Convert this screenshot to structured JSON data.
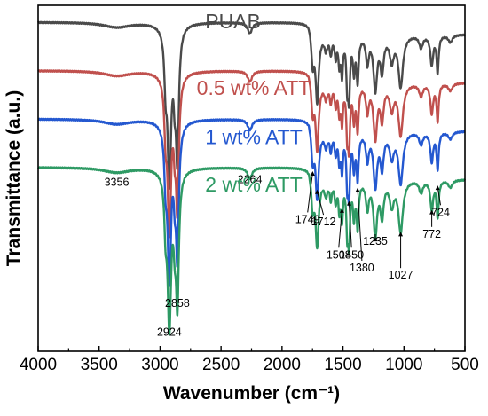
{
  "chart_data": {
    "type": "line",
    "xlabel": "Wavenumber (cm⁻¹)",
    "ylabel": "Transmittance (a.u.)",
    "xlim": [
      4000,
      500
    ],
    "x_reversed": true,
    "x_ticks": [
      4000,
      3500,
      3000,
      2500,
      2000,
      1500,
      1000,
      500
    ],
    "y_ticks": [],
    "grid": false,
    "legend": "inline labels next to each curve",
    "series": [
      {
        "name": "PUAB",
        "color": "#4a4a4a",
        "baseline": 3.6,
        "label_x": 2630,
        "label_y": 3.47
      },
      {
        "name": "0.5 wt% ATT",
        "color": "#c0504d",
        "baseline": 2.6,
        "label_x": 2700,
        "label_y": 2.1
      },
      {
        "name": "1 wt% ATT",
        "color": "#2458d0",
        "baseline": 1.6,
        "label_x": 2630,
        "label_y": 1.08
      },
      {
        "name": "2 wt% ATT",
        "color": "#2e9a64",
        "baseline": 0.6,
        "label_x": 2630,
        "label_y": 0.1
      }
    ],
    "bands": [
      {
        "x": 3356,
        "w": 130,
        "d": 0.1
      },
      {
        "x": 2955,
        "w": 12,
        "d": 0.9
      },
      {
        "x": 2924,
        "w": 18,
        "d": 3.15
      },
      {
        "x": 2880,
        "w": 12,
        "d": 0.9
      },
      {
        "x": 2858,
        "w": 14,
        "d": 2.6
      },
      {
        "x": 2264,
        "w": 22,
        "d": 0.22
      },
      {
        "x": 1749,
        "w": 12,
        "d": 0.6
      },
      {
        "x": 1712,
        "w": 15,
        "d": 1.35
      },
      {
        "x": 1640,
        "w": 14,
        "d": 0.28
      },
      {
        "x": 1600,
        "w": 10,
        "d": 0.35
      },
      {
        "x": 1560,
        "w": 10,
        "d": 0.42
      },
      {
        "x": 1530,
        "w": 9,
        "d": 0.55
      },
      {
        "x": 1508,
        "w": 9,
        "d": 0.75
      },
      {
        "x": 1465,
        "w": 9,
        "d": 0.95
      },
      {
        "x": 1450,
        "w": 9,
        "d": 1.15
      },
      {
        "x": 1410,
        "w": 10,
        "d": 0.7
      },
      {
        "x": 1380,
        "w": 10,
        "d": 0.92
      },
      {
        "x": 1300,
        "w": 14,
        "d": 0.55
      },
      {
        "x": 1235,
        "w": 18,
        "d": 1.1
      },
      {
        "x": 1180,
        "w": 16,
        "d": 0.7
      },
      {
        "x": 1100,
        "w": 20,
        "d": 0.5
      },
      {
        "x": 1027,
        "w": 22,
        "d": 1.05
      },
      {
        "x": 860,
        "w": 18,
        "d": 0.25
      },
      {
        "x": 772,
        "w": 14,
        "d": 0.6
      },
      {
        "x": 724,
        "w": 10,
        "d": 0.75
      },
      {
        "x": 620,
        "w": 20,
        "d": 0.15
      }
    ],
    "annotations": [
      {
        "text": "3356",
        "x": 3356,
        "label_y": 0.22,
        "arrow": false
      },
      {
        "text": "2924",
        "x": 2924,
        "label_y": -2.88,
        "arrow": false
      },
      {
        "text": "2858",
        "x": 2858,
        "label_y": -2.28,
        "arrow": false
      },
      {
        "text": "2264",
        "x": 2264,
        "label_y": 0.27,
        "arrow": false
      },
      {
        "text": "1749",
        "x": 1790,
        "label_y": -0.55,
        "arrow": true
      },
      {
        "text": "1712",
        "x": 1660,
        "label_y": -0.6,
        "arrow": true
      },
      {
        "text": "1508",
        "x": 1535,
        "label_y": -1.28,
        "arrow": true
      },
      {
        "text": "1450",
        "x": 1430,
        "label_y": -1.28,
        "arrow": true
      },
      {
        "text": "1380",
        "x": 1345,
        "label_y": -1.55,
        "arrow": true
      },
      {
        "text": "1235",
        "x": 1235,
        "label_y": -1.0,
        "arrow": true
      },
      {
        "text": "1027",
        "x": 1027,
        "label_y": -1.7,
        "arrow": true
      },
      {
        "text": "772",
        "x": 772,
        "label_y": -0.85,
        "arrow": true
      },
      {
        "text": "724",
        "x": 700,
        "label_y": -0.4,
        "arrow": true
      }
    ],
    "ylim": [
      -3.2,
      3.95
    ]
  }
}
